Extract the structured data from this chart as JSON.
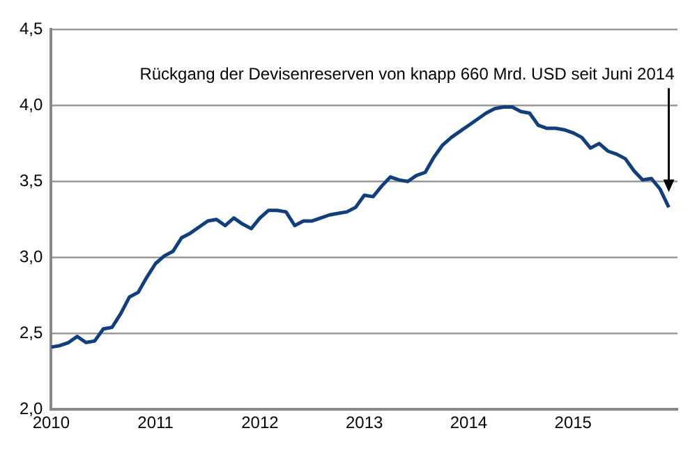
{
  "chart_data": {
    "type": "line",
    "x": [
      "2010-01",
      "2010-02",
      "2010-03",
      "2010-04",
      "2010-05",
      "2010-06",
      "2010-07",
      "2010-08",
      "2010-09",
      "2010-10",
      "2010-11",
      "2010-12",
      "2011-01",
      "2011-02",
      "2011-03",
      "2011-04",
      "2011-05",
      "2011-06",
      "2011-07",
      "2011-08",
      "2011-09",
      "2011-10",
      "2011-11",
      "2011-12",
      "2012-01",
      "2012-02",
      "2012-03",
      "2012-04",
      "2012-05",
      "2012-06",
      "2012-07",
      "2012-08",
      "2012-09",
      "2012-10",
      "2012-11",
      "2012-12",
      "2013-01",
      "2013-02",
      "2013-03",
      "2013-04",
      "2013-05",
      "2013-06",
      "2013-07",
      "2013-08",
      "2013-09",
      "2013-10",
      "2013-11",
      "2013-12",
      "2014-01",
      "2014-02",
      "2014-03",
      "2014-04",
      "2014-05",
      "2014-06",
      "2014-07",
      "2014-08",
      "2014-09",
      "2014-10",
      "2014-11",
      "2014-12",
      "2015-01",
      "2015-02",
      "2015-03",
      "2015-04",
      "2015-05",
      "2015-06",
      "2015-07",
      "2015-08",
      "2015-09",
      "2015-10",
      "2015-11",
      "2015-12"
    ],
    "series": [
      {
        "color": "#123f7c",
        "values": [
          2.41,
          2.42,
          2.44,
          2.48,
          2.44,
          2.45,
          2.53,
          2.54,
          2.63,
          2.74,
          2.77,
          2.87,
          2.96,
          3.01,
          3.04,
          3.13,
          3.16,
          3.2,
          3.24,
          3.25,
          3.21,
          3.26,
          3.22,
          3.19,
          3.26,
          3.31,
          3.31,
          3.3,
          3.21,
          3.24,
          3.24,
          3.26,
          3.28,
          3.29,
          3.3,
          3.33,
          3.41,
          3.4,
          3.47,
          3.53,
          3.51,
          3.5,
          3.54,
          3.56,
          3.66,
          3.74,
          3.79,
          3.83,
          3.87,
          3.91,
          3.95,
          3.98,
          3.99,
          3.99,
          3.96,
          3.95,
          3.87,
          3.85,
          3.85,
          3.84,
          3.82,
          3.79,
          3.72,
          3.75,
          3.7,
          3.68,
          3.65,
          3.57,
          3.51,
          3.52,
          3.45,
          3.33
        ]
      }
    ],
    "xlim": [
      "2010",
      "2016"
    ],
    "xticks": [
      "2010",
      "2011",
      "2012",
      "2013",
      "2014",
      "2015"
    ],
    "ylim": [
      2,
      4.5
    ],
    "yticks": [
      {
        "value": 2,
        "label": "2,0"
      },
      {
        "value": 2.5,
        "label": "2,5"
      },
      {
        "value": 3,
        "label": "3,0"
      },
      {
        "value": 3.5,
        "label": "3,5"
      },
      {
        "value": 4,
        "label": "4,0"
      },
      {
        "value": 4.5,
        "label": "4,5"
      }
    ],
    "grid": "y",
    "marker": "none",
    "line_style": "solid",
    "annotations": [
      {
        "text": "Rückgang der Devisenreserven von knapp 660 Mrd. USD seit Juni 2014",
        "x": "2015-12",
        "y": 3.43
      }
    ]
  }
}
